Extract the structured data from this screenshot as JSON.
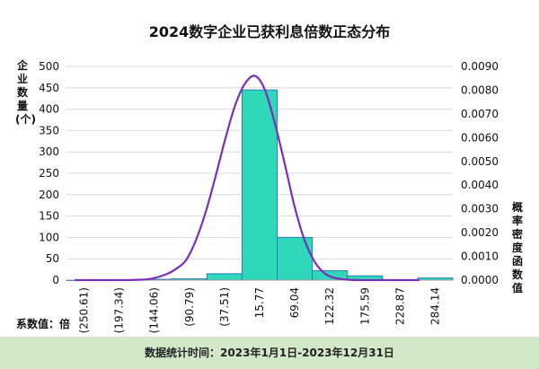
{
  "title": "2024数字企业已获利息倍数正态分布",
  "left_axis_label": "企业数量(个)",
  "right_axis_label": "概率密度函数值",
  "unit_note": "系数值：倍",
  "footer_text": "数据统计时间：2023年1月1日-2023年12月31日",
  "colors": {
    "bar_fill": "#2fd8b8",
    "bar_stroke": "#2a7fb8",
    "curve": "#7b2fb5",
    "grid": "#d9d9d9",
    "footer_bg": "#d3e7c9"
  },
  "chart_data": {
    "type": "bar",
    "title": "2024数字企业已获利息倍数正态分布",
    "xlabel": "系数值：倍",
    "ylabel": "企业数量(个)",
    "y2label": "概率密度函数值",
    "categories": [
      "(250.61)",
      "(197.34)",
      "(144.06)",
      "(90.79)",
      "(37.51)",
      "15.77",
      "69.04",
      "122.32",
      "175.59",
      "228.87",
      "284.14"
    ],
    "series": [
      {
        "type": "bar",
        "axis": "left",
        "values": [
          0,
          1,
          2,
          3,
          15,
          445,
          100,
          22,
          10,
          1,
          5
        ]
      },
      {
        "type": "line",
        "axis": "right",
        "x": [
          -265,
          -230,
          -200,
          -175,
          -150,
          -125,
          -110,
          -95,
          -80,
          -65,
          -50,
          -35,
          -20,
          -5,
          10,
          25,
          40,
          55,
          70,
          85,
          100,
          115,
          130,
          150,
          175,
          210,
          260
        ],
        "values": [
          0,
          0,
          0,
          1e-05,
          5e-05,
          0.00025,
          0.00048,
          0.00085,
          0.0017,
          0.0029,
          0.0044,
          0.006,
          0.0074,
          0.0083,
          0.0086,
          0.008,
          0.0066,
          0.0049,
          0.0031,
          0.0017,
          0.0008,
          0.0003,
          0.0001,
          2e-05,
          0,
          0,
          0
        ]
      }
    ],
    "ylim": [
      0,
      500
    ],
    "yticks": [
      0,
      50,
      100,
      150,
      200,
      250,
      300,
      350,
      400,
      450,
      500
    ],
    "y2lim": [
      0,
      0.009
    ],
    "y2ticks": [
      "0.0000",
      "0.0010",
      "0.0020",
      "0.0030",
      "0.0040",
      "0.0050",
      "0.0060",
      "0.0070",
      "0.0080",
      "0.0090"
    ],
    "grid": true
  }
}
